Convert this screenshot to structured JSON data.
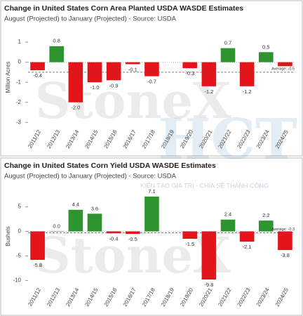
{
  "watermark": [
    "StoneX",
    "HCT",
    "KIẾN TẠO GIÁ TRỊ - CHIA SẺ THÀNH CÔNG"
  ],
  "chart_data": [
    {
      "type": "bar",
      "title": "Change in United States Corn Area Planted USDA WASDE Estimates",
      "subtitle": "August (Projected) to January (Projected) - Source: USDA",
      "y_label": "Million Acres",
      "categories": [
        "2011/12",
        "2012/13",
        "2013/14",
        "2014/15",
        "2015/16",
        "2016/17",
        "2017/18",
        "2018/19",
        "2019/20",
        "2020/21",
        "2021/22",
        "2022/23",
        "2023/24",
        "2024/25"
      ],
      "values": [
        -0.4,
        0.8,
        -2.0,
        -1.0,
        -0.9,
        -0.1,
        -0.7,
        null,
        -0.3,
        -1.2,
        0.7,
        -1.2,
        0.5,
        -0.2
      ],
      "value_labels": [
        "-0.4",
        "0.8",
        "-2.0",
        "-1.0",
        "-0.9",
        "-0.1",
        "-0.7",
        null,
        "-0.3",
        "-1.2",
        "0.7",
        "-1.2",
        "0.5",
        null
      ],
      "positive_color": "#2e9430",
      "negative_color": "#e3151b",
      "average": {
        "value": -0.5,
        "label": "Average: -0.5"
      },
      "ylim": [
        -3.2,
        1.7
      ],
      "yticks": [
        1,
        0,
        -1,
        -2,
        -3
      ]
    },
    {
      "type": "bar",
      "title": "Change in United States Corn Yield USDA WASDE Estimates",
      "subtitle": "August (Projected) to January (Projected) - Source: USDA",
      "y_label": "Bushels",
      "categories": [
        "2011/12",
        "2012/13",
        "2013/14",
        "2014/15",
        "2015/16",
        "2016/17",
        "2017/18",
        "2018/19",
        "2019/20",
        "2020/21",
        "2021/22",
        "2022/23",
        "2023/24",
        "2024/25"
      ],
      "values": [
        -5.8,
        0.0,
        4.4,
        3.6,
        -0.4,
        -0.5,
        7.1,
        null,
        -1.5,
        -9.8,
        2.4,
        -2.1,
        2.2,
        -3.8
      ],
      "value_labels": [
        "-5.8",
        "0.0",
        "4.4",
        "3.6",
        "-0.4",
        "-0.5",
        "7.1",
        null,
        "-1.5",
        "-9.8",
        "2.4",
        "-2.1",
        "2.2",
        "-3.8"
      ],
      "positive_color": "#2e9430",
      "negative_color": "#e3151b",
      "average": {
        "value": -0.3,
        "label": "Average: -0.3"
      },
      "ylim": [
        -10.8,
        8.8
      ],
      "yticks": [
        5,
        0,
        -5,
        -10
      ]
    }
  ]
}
